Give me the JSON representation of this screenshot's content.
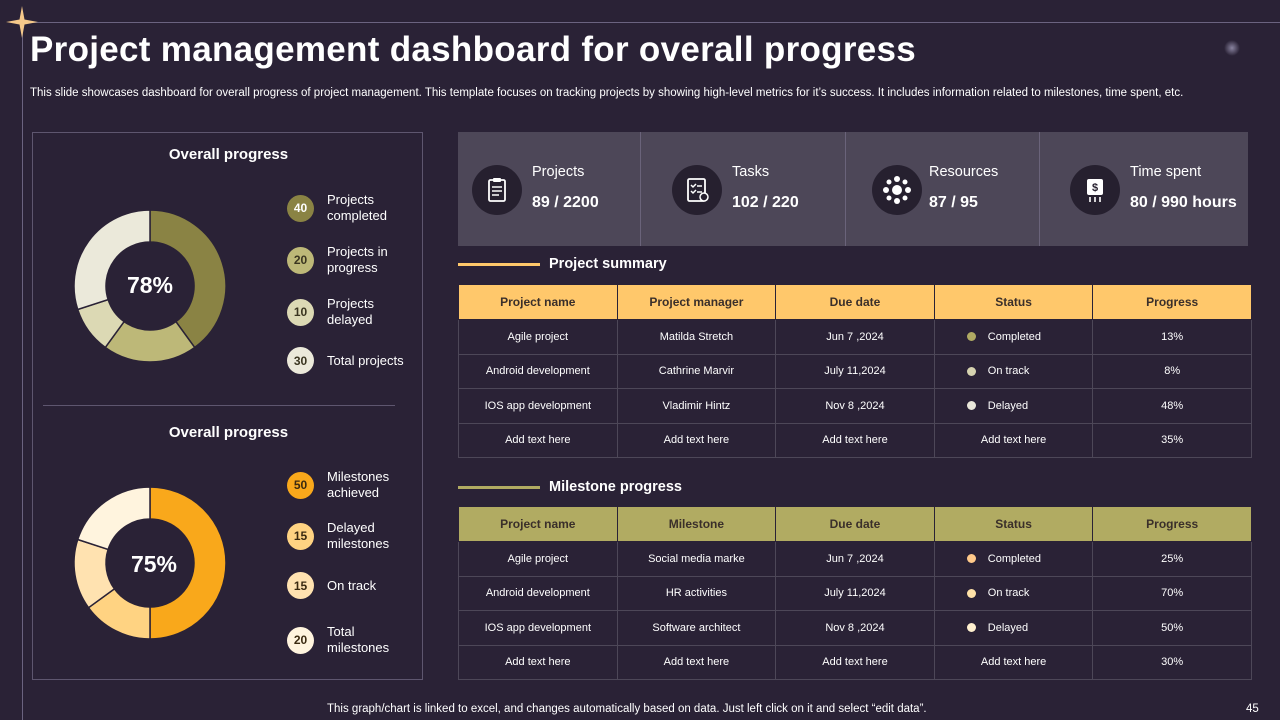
{
  "header": {
    "title": "Project management dashboard for overall progress",
    "subtitle": "This slide showcases dashboard for overall progress of project management. This template focuses on tracking projects by showing high-level metrics for it’s success. It includes information related to milestones, time spent, etc."
  },
  "projects_panel": {
    "title": "Overall progress",
    "center_label": "78%",
    "legend": [
      {
        "value": "40",
        "label": "Projects completed",
        "color": "#8a8344"
      },
      {
        "value": "20",
        "label": "Projects in progress",
        "color": "#bdb878"
      },
      {
        "value": "10",
        "label": "Projects delayed",
        "color": "#dcd9b4"
      },
      {
        "value": "30",
        "label": "Total projects",
        "color": "#ebe9da"
      }
    ]
  },
  "milestones_panel": {
    "title": "Overall progress",
    "center_label": "75%",
    "legend": [
      {
        "value": "50",
        "label": "Milestones achieved",
        "color": "#f9a81b"
      },
      {
        "value": "15",
        "label": "Delayed milestones",
        "color": "#ffd382"
      },
      {
        "value": "15",
        "label": "On track",
        "color": "#ffe2b0"
      },
      {
        "value": "20",
        "label": "Total milestones",
        "color": "#fff4de"
      }
    ]
  },
  "stats": [
    {
      "label": "Projects",
      "value": "89 / 2200",
      "icon": "clipboard-icon"
    },
    {
      "label": "Tasks",
      "value": "102 / 220",
      "icon": "task-list-icon"
    },
    {
      "label": "Resources",
      "value": "87 / 95",
      "icon": "resources-icon"
    },
    {
      "label": "Time spent",
      "value": "80 / 990 hours",
      "icon": "money-time-icon"
    }
  ],
  "project_summary": {
    "title": "Project summary",
    "columns": [
      "Project name",
      "Project manager",
      "Due date",
      "Status",
      "Progress"
    ],
    "rows": [
      [
        "Agile project",
        "Matilda Stretch",
        "Jun 7 ,2024",
        "Completed",
        "13%"
      ],
      [
        "Android development",
        "Cathrine Marvir",
        "July 11,2024",
        "On track",
        "8%"
      ],
      [
        "IOS app development",
        "Vladimir Hintz",
        "Nov 8 ,2024",
        "Delayed",
        "48%"
      ],
      [
        "Add text here",
        "Add text here",
        "Add text here",
        "Add text here",
        "35%"
      ]
    ],
    "status_colors": [
      "#b0aa63",
      "#d6d3b0",
      "#e9e7da"
    ]
  },
  "milestone_progress": {
    "title": "Milestone progress",
    "columns": [
      "Project name",
      "Milestone",
      "Due date",
      "Status",
      "Progress"
    ],
    "rows": [
      [
        "Agile project",
        "Social media marke",
        "Jun 7 ,2024",
        "Completed",
        "25%"
      ],
      [
        "Android development",
        "HR activities",
        "July 11,2024",
        "On track",
        "70%"
      ],
      [
        "IOS app development",
        "Software architect",
        "Nov 8 ,2024",
        "Delayed",
        "50%"
      ],
      [
        "Add text here",
        "Add text here",
        "Add text here",
        "Add text here",
        "30%"
      ]
    ],
    "status_colors": [
      "#ffc98a",
      "#ffe2a8",
      "#fff0cf"
    ]
  },
  "footer": {
    "note": "This graph/chart is linked to excel, and changes automatically based on data. Just left click on it and select “edit data”.",
    "page_number": "45"
  },
  "colors": {
    "background": "#2a2236",
    "summary_header": "#ffc86b",
    "milestone_header": "#b1ab62",
    "summary_line": "#ffc86b",
    "milestone_line": "#b1ab62"
  }
}
